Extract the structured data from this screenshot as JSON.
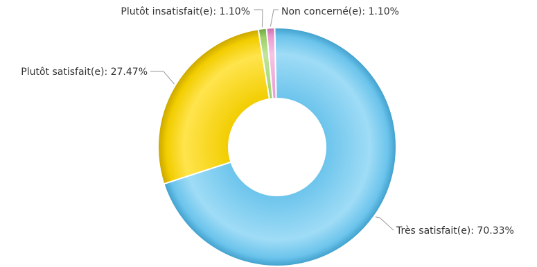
{
  "chart_data": {
    "type": "pie",
    "title": "",
    "donut": true,
    "legend": "none",
    "slices": [
      {
        "label": "Très satisfait(e)",
        "value": 70.33,
        "display": "Très satisfait(e): 70.33%",
        "color": "#6cc4ec",
        "color_light": "#9fdcf6",
        "color_dark": "#3f9fcb"
      },
      {
        "label": "Plutôt satisfait(e)",
        "value": 27.47,
        "display": "Plutôt satisfait(e): 27.47%",
        "color": "#f2cd00",
        "color_light": "#ffe44d",
        "color_dark": "#c9a500"
      },
      {
        "label": "Plutôt insatisfait(e)",
        "value": 1.1,
        "display": "Plutôt insatisfait(e): 1.10%",
        "color": "#9bcf67",
        "color_light": "#c1e59a",
        "color_dark": "#6fa640"
      },
      {
        "label": "Non concerné(e)",
        "value": 1.1,
        "display": "Non concerné(e): 1.10%",
        "color": "#e89ad0",
        "color_light": "#f6c4e6",
        "color_dark": "#c46fab"
      }
    ]
  }
}
